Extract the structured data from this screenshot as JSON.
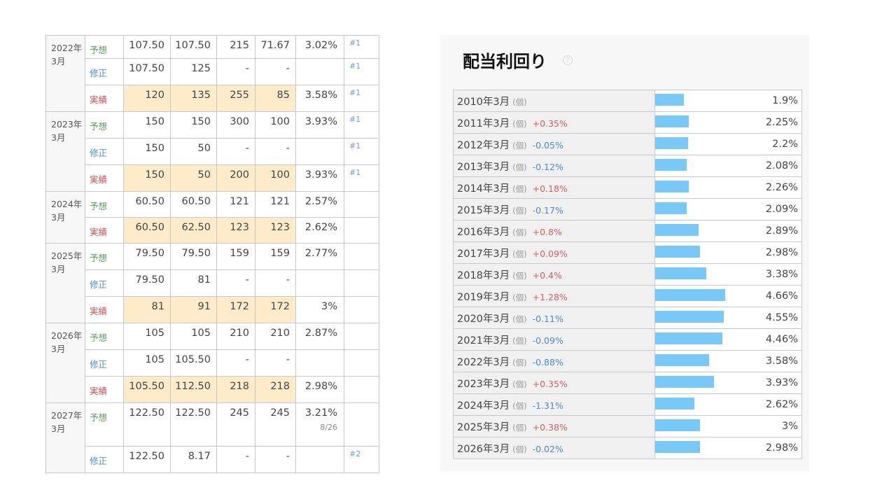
{
  "dividend_table": {
    "groups": [
      {
        "year": "2022年",
        "month": "3月",
        "rows": [
          {
            "label": "予想",
            "kind": "forecast",
            "values": [
              "107.50",
              "107.50",
              "215",
              "71.67"
            ],
            "yield": "3.02%",
            "note": "#1"
          },
          {
            "label": "修正",
            "kind": "revision",
            "values": [
              "107.50",
              "125",
              "-",
              "-"
            ],
            "yield": "",
            "note": "#1"
          },
          {
            "label": "実績",
            "kind": "actual",
            "values": [
              "120",
              "135",
              "255",
              "85"
            ],
            "yield": "3.58%",
            "note": "#1"
          }
        ]
      },
      {
        "year": "2023年",
        "month": "3月",
        "rows": [
          {
            "label": "予想",
            "kind": "forecast",
            "values": [
              "150",
              "150",
              "300",
              "100"
            ],
            "yield": "3.93%",
            "note": "#1"
          },
          {
            "label": "修正",
            "kind": "revision",
            "values": [
              "150",
              "50",
              "-",
              "-"
            ],
            "yield": "",
            "note": "#1"
          },
          {
            "label": "実績",
            "kind": "actual",
            "values": [
              "150",
              "50",
              "200",
              "100"
            ],
            "yield": "3.93%",
            "note": "#1"
          }
        ]
      },
      {
        "year": "2024年",
        "month": "3月",
        "rows": [
          {
            "label": "予想",
            "kind": "forecast",
            "values": [
              "60.50",
              "60.50",
              "121",
              "121"
            ],
            "yield": "2.57%",
            "note": ""
          },
          {
            "label": "実績",
            "kind": "actual",
            "values": [
              "60.50",
              "62.50",
              "123",
              "123"
            ],
            "yield": "2.62%",
            "note": ""
          }
        ]
      },
      {
        "year": "2025年",
        "month": "3月",
        "rows": [
          {
            "label": "予想",
            "kind": "forecast",
            "values": [
              "79.50",
              "79.50",
              "159",
              "159"
            ],
            "yield": "2.77%",
            "note": ""
          },
          {
            "label": "修正",
            "kind": "revision",
            "values": [
              "79.50",
              "81",
              "-",
              "-"
            ],
            "yield": "",
            "note": ""
          },
          {
            "label": "実績",
            "kind": "actual",
            "values": [
              "81",
              "91",
              "172",
              "172"
            ],
            "yield": "3%",
            "note": ""
          }
        ]
      },
      {
        "year": "2026年",
        "month": "3月",
        "rows": [
          {
            "label": "予想",
            "kind": "forecast",
            "values": [
              "105",
              "105",
              "210",
              "210"
            ],
            "yield": "2.87%",
            "note": ""
          },
          {
            "label": "修正",
            "kind": "revision",
            "values": [
              "105",
              "105.50",
              "-",
              "-"
            ],
            "yield": "",
            "note": ""
          },
          {
            "label": "実績",
            "kind": "actual",
            "values": [
              "105.50",
              "112.50",
              "218",
              "218"
            ],
            "yield": "2.98%",
            "note": ""
          }
        ]
      },
      {
        "year": "2027年",
        "month": "3月",
        "rows": [
          {
            "label": "予想",
            "kind": "forecast",
            "values": [
              "122.50",
              "122.50",
              "245",
              "245"
            ],
            "yield": "3.21%",
            "yield_sub": "8/26",
            "note": ""
          },
          {
            "label": "修正",
            "kind": "revision",
            "values": [
              "122.50",
              "8.17",
              "-",
              "-"
            ],
            "yield": "",
            "note": "#2"
          }
        ]
      }
    ]
  },
  "yield_panel": {
    "title": "配当利回り",
    "help_icon": "question-circle-icon",
    "kind_label": "(個)",
    "bar_color": "#79c9f8",
    "positive_color": "#d26060",
    "negative_color": "#4a8ad8",
    "rows": [
      {
        "period": "2010年3月",
        "change": "",
        "value": "1.9%",
        "pct": 1.9
      },
      {
        "period": "2011年3月",
        "change": "+0.35%",
        "value": "2.25%",
        "pct": 2.25
      },
      {
        "period": "2012年3月",
        "change": "-0.05%",
        "value": "2.2%",
        "pct": 2.2
      },
      {
        "period": "2013年3月",
        "change": "-0.12%",
        "value": "2.08%",
        "pct": 2.08
      },
      {
        "period": "2014年3月",
        "change": "+0.18%",
        "value": "2.26%",
        "pct": 2.26
      },
      {
        "period": "2015年3月",
        "change": "-0.17%",
        "value": "2.09%",
        "pct": 2.09
      },
      {
        "period": "2016年3月",
        "change": "+0.8%",
        "value": "2.89%",
        "pct": 2.89
      },
      {
        "period": "2017年3月",
        "change": "+0.09%",
        "value": "2.98%",
        "pct": 2.98
      },
      {
        "period": "2018年3月",
        "change": "+0.4%",
        "value": "3.38%",
        "pct": 3.38
      },
      {
        "period": "2019年3月",
        "change": "+1.28%",
        "value": "4.66%",
        "pct": 4.66
      },
      {
        "period": "2020年3月",
        "change": "-0.11%",
        "value": "4.55%",
        "pct": 4.55
      },
      {
        "period": "2021年3月",
        "change": "-0.09%",
        "value": "4.46%",
        "pct": 4.46
      },
      {
        "period": "2022年3月",
        "change": "-0.88%",
        "value": "3.58%",
        "pct": 3.58
      },
      {
        "period": "2023年3月",
        "change": "+0.35%",
        "value": "3.93%",
        "pct": 3.93
      },
      {
        "period": "2024年3月",
        "change": "-1.31%",
        "value": "2.62%",
        "pct": 2.62
      },
      {
        "period": "2025年3月",
        "change": "+0.38%",
        "value": "3%",
        "pct": 3
      },
      {
        "period": "2026年3月",
        "change": "-0.02%",
        "value": "2.98%",
        "pct": 2.98
      }
    ]
  }
}
